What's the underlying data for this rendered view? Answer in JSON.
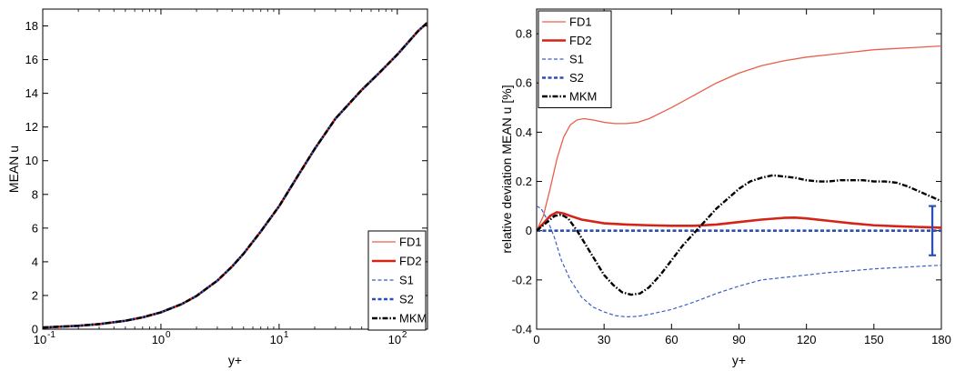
{
  "chart_data": [
    {
      "type": "line",
      "xscale": "log",
      "xlim": [
        0.1,
        180
      ],
      "ylim": [
        0,
        19
      ],
      "xlabel": "y+",
      "ylabel": "MEAN u",
      "x_ticks": [
        0.1,
        1,
        10,
        100
      ],
      "x_tick_labels": [
        {
          "base": "10",
          "exp": "-1"
        },
        {
          "base": "10",
          "exp": "0"
        },
        {
          "base": "10",
          "exp": "1"
        },
        {
          "base": "10",
          "exp": "2"
        }
      ],
      "y_ticks": [
        0,
        2,
        4,
        6,
        8,
        10,
        12,
        14,
        16,
        18
      ],
      "y_tick_labels": [
        "0",
        "2",
        "4",
        "6",
        "8",
        "10",
        "12",
        "14",
        "16",
        "18"
      ],
      "legend": {
        "position": "bottom-right",
        "entries": [
          "FD1",
          "FD2",
          "S1",
          "S2",
          "MKM"
        ]
      },
      "x": [
        0.1,
        0.2,
        0.3,
        0.5,
        0.7,
        1,
        1.5,
        2,
        3,
        4,
        5,
        7,
        10,
        15,
        20,
        30,
        50,
        70,
        100,
        150,
        180
      ],
      "series": [
        {
          "name": "FD1",
          "color": "#e8604a",
          "dash": "solid",
          "width": 1.3,
          "values": [
            0.1,
            0.2,
            0.3,
            0.5,
            0.7,
            1.0,
            1.49,
            1.97,
            2.88,
            3.72,
            4.48,
            5.8,
            7.3,
            9.3,
            10.7,
            12.5,
            14.2,
            15.2,
            16.3,
            17.7,
            18.2
          ]
        },
        {
          "name": "FD2",
          "color": "#d42418",
          "dash": "solid",
          "width": 2.6,
          "values": [
            0.1,
            0.2,
            0.3,
            0.5,
            0.7,
            1.0,
            1.49,
            1.97,
            2.88,
            3.72,
            4.48,
            5.8,
            7.3,
            9.3,
            10.7,
            12.5,
            14.2,
            15.2,
            16.3,
            17.7,
            18.2
          ]
        },
        {
          "name": "S1",
          "color": "#3a5fc4",
          "dash": "dashed",
          "width": 1.2,
          "values": [
            0.1,
            0.2,
            0.3,
            0.5,
            0.7,
            1.0,
            1.49,
            1.97,
            2.88,
            3.72,
            4.48,
            5.8,
            7.3,
            9.3,
            10.7,
            12.5,
            14.2,
            15.2,
            16.3,
            17.7,
            18.2
          ]
        },
        {
          "name": "S2",
          "color": "#2a4fb8",
          "dash": "dashed",
          "width": 2.6,
          "values": [
            0.1,
            0.2,
            0.3,
            0.5,
            0.7,
            1.0,
            1.49,
            1.97,
            2.88,
            3.72,
            4.48,
            5.8,
            7.3,
            9.3,
            10.7,
            12.5,
            14.2,
            15.2,
            16.3,
            17.7,
            18.2
          ]
        },
        {
          "name": "MKM",
          "color": "#000000",
          "dash": "dashdot",
          "width": 2.4,
          "values": [
            0.1,
            0.2,
            0.3,
            0.5,
            0.7,
            1.0,
            1.49,
            1.97,
            2.88,
            3.72,
            4.48,
            5.8,
            7.3,
            9.3,
            10.7,
            12.5,
            14.2,
            15.2,
            16.3,
            17.7,
            18.2
          ]
        }
      ]
    },
    {
      "type": "line",
      "xscale": "linear",
      "xlim": [
        0,
        180
      ],
      "ylim": [
        -0.4,
        0.9
      ],
      "xlabel": "y+",
      "ylabel": "relative deviation MEAN u [%]",
      "x_ticks": [
        0,
        30,
        60,
        90,
        120,
        150,
        180
      ],
      "x_tick_labels": [
        "0",
        "30",
        "60",
        "90",
        "120",
        "150",
        "180"
      ],
      "y_ticks": [
        -0.4,
        -0.2,
        0,
        0.2,
        0.4,
        0.6,
        0.8
      ],
      "y_tick_labels": [
        "-0.4",
        "-0.2",
        "0",
        "0.2",
        "0.4",
        "0.6",
        "0.8"
      ],
      "legend": {
        "position": "top-left",
        "entries": [
          "FD1",
          "FD2",
          "S1",
          "S2",
          "MKM"
        ]
      },
      "error_bar": {
        "x": 176,
        "y": 0,
        "low": -0.1,
        "high": 0.1,
        "color": "#2a4fb8"
      },
      "series": [
        {
          "name": "FD1",
          "color": "#e8604a",
          "dash": "solid",
          "width": 1.3,
          "x": [
            0,
            3,
            6,
            9,
            12,
            15,
            18,
            21,
            25,
            30,
            35,
            40,
            45,
            50,
            60,
            70,
            80,
            90,
            100,
            110,
            120,
            130,
            140,
            150,
            160,
            170,
            180
          ],
          "values": [
            0.0,
            0.06,
            0.17,
            0.29,
            0.38,
            0.43,
            0.45,
            0.455,
            0.45,
            0.44,
            0.435,
            0.435,
            0.44,
            0.455,
            0.5,
            0.55,
            0.6,
            0.64,
            0.67,
            0.69,
            0.705,
            0.715,
            0.725,
            0.735,
            0.74,
            0.745,
            0.75
          ]
        },
        {
          "name": "FD2",
          "color": "#d42418",
          "dash": "solid",
          "width": 2.6,
          "x": [
            0,
            3,
            6,
            9,
            12,
            15,
            20,
            30,
            40,
            50,
            60,
            70,
            80,
            90,
            100,
            110,
            115,
            120,
            130,
            140,
            150,
            160,
            170,
            180
          ],
          "values": [
            0.0,
            0.03,
            0.06,
            0.075,
            0.07,
            0.06,
            0.045,
            0.03,
            0.025,
            0.022,
            0.02,
            0.02,
            0.025,
            0.035,
            0.045,
            0.052,
            0.053,
            0.05,
            0.04,
            0.03,
            0.022,
            0.018,
            0.015,
            0.012
          ]
        },
        {
          "name": "S1",
          "color": "#3a5fc4",
          "dash": "dashed",
          "width": 1.2,
          "x": [
            0,
            2,
            5,
            8,
            11,
            15,
            20,
            25,
            30,
            35,
            40,
            45,
            50,
            60,
            70,
            80,
            90,
            100,
            110,
            120,
            130,
            140,
            150,
            160,
            170,
            180
          ],
          "values": [
            0.1,
            0.09,
            0.04,
            -0.03,
            -0.12,
            -0.2,
            -0.27,
            -0.31,
            -0.33,
            -0.345,
            -0.35,
            -0.348,
            -0.34,
            -0.32,
            -0.29,
            -0.255,
            -0.225,
            -0.2,
            -0.19,
            -0.18,
            -0.17,
            -0.163,
            -0.155,
            -0.15,
            -0.145,
            -0.14
          ]
        },
        {
          "name": "S2",
          "color": "#2a4fb8",
          "dash": "dashed",
          "width": 2.6,
          "x": [
            0,
            30,
            60,
            90,
            120,
            150,
            180
          ],
          "values": [
            0,
            0,
            0,
            0,
            0,
            0,
            0
          ]
        },
        {
          "name": "MKM",
          "color": "#000000",
          "dash": "dashdot",
          "width": 2.4,
          "x": [
            0,
            4,
            8,
            11,
            14,
            18,
            22,
            26,
            30,
            34,
            38,
            42,
            46,
            50,
            55,
            60,
            65,
            70,
            75,
            80,
            85,
            90,
            95,
            100,
            105,
            110,
            115,
            120,
            125,
            130,
            135,
            140,
            145,
            150,
            155,
            160,
            165,
            170,
            175,
            180
          ],
          "values": [
            0.0,
            0.03,
            0.06,
            0.065,
            0.05,
            0.0,
            -0.06,
            -0.12,
            -0.18,
            -0.22,
            -0.25,
            -0.26,
            -0.255,
            -0.23,
            -0.18,
            -0.12,
            -0.06,
            -0.01,
            0.04,
            0.09,
            0.13,
            0.17,
            0.2,
            0.215,
            0.225,
            0.22,
            0.215,
            0.205,
            0.2,
            0.2,
            0.205,
            0.205,
            0.205,
            0.2,
            0.2,
            0.195,
            0.18,
            0.16,
            0.14,
            0.12
          ]
        }
      ]
    }
  ]
}
